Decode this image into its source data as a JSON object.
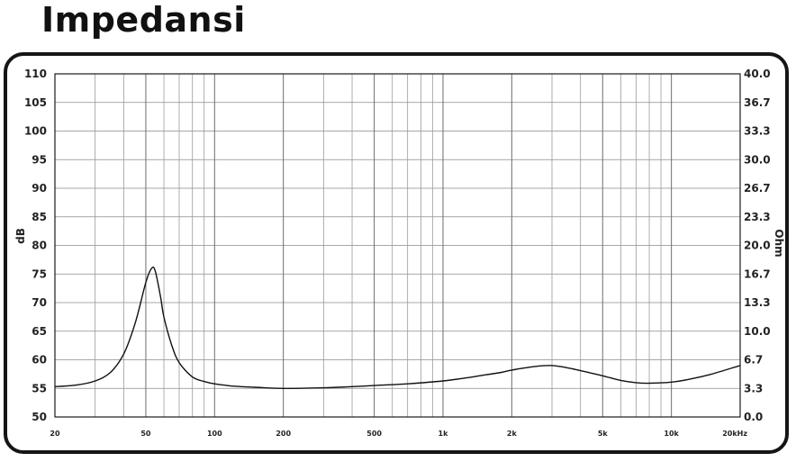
{
  "page": {
    "title": "Impedansi"
  },
  "chart_data": {
    "type": "line",
    "title": "",
    "xscale": "log",
    "xlim": [
      20,
      20000
    ],
    "x_ticks": [
      20,
      50,
      100,
      200,
      500,
      1000,
      2000,
      5000,
      10000,
      20000
    ],
    "x_tick_labels": [
      "20",
      "50",
      "100",
      "200",
      "500",
      "1k",
      "2k",
      "5k",
      "10k",
      "20kHz"
    ],
    "left_axis": {
      "label": "dB",
      "ylim": [
        50,
        110
      ],
      "ticks": [
        "110",
        "105",
        "100",
        "95",
        "90",
        "85",
        "80",
        "75",
        "70",
        "65",
        "60",
        "55",
        "50"
      ]
    },
    "right_axis": {
      "label": "Ohm",
      "ylim": [
        0,
        40
      ],
      "ticks": [
        "40.0",
        "36.7",
        "33.3",
        "30.0",
        "26.7",
        "23.3",
        "20.0",
        "16.7",
        "13.3",
        "10.0",
        "6.7",
        "3.3",
        "0.0"
      ]
    },
    "grid": true,
    "series": [
      {
        "color": "#111111",
        "axis": "left",
        "x": [
          20,
          25,
          30,
          35,
          40,
          45,
          50,
          53,
          55,
          58,
          60,
          65,
          70,
          80,
          90,
          100,
          120,
          150,
          200,
          300,
          400,
          500,
          700,
          1000,
          1300,
          1500,
          1800,
          2000,
          2500,
          3000,
          3500,
          4000,
          5000,
          6000,
          7000,
          8000,
          10000,
          12000,
          15000,
          20000
        ],
        "y": [
          55.3,
          55.6,
          56.3,
          57.8,
          61.0,
          66.5,
          73.5,
          76.0,
          75.5,
          71.0,
          67.5,
          62.5,
          59.5,
          57.0,
          56.2,
          55.8,
          55.4,
          55.2,
          55.0,
          55.1,
          55.3,
          55.5,
          55.8,
          56.3,
          56.9,
          57.3,
          57.8,
          58.2,
          58.8,
          59.0,
          58.6,
          58.1,
          57.2,
          56.4,
          56.0,
          55.9,
          56.1,
          56.6,
          57.5,
          59.0
        ]
      }
    ]
  }
}
